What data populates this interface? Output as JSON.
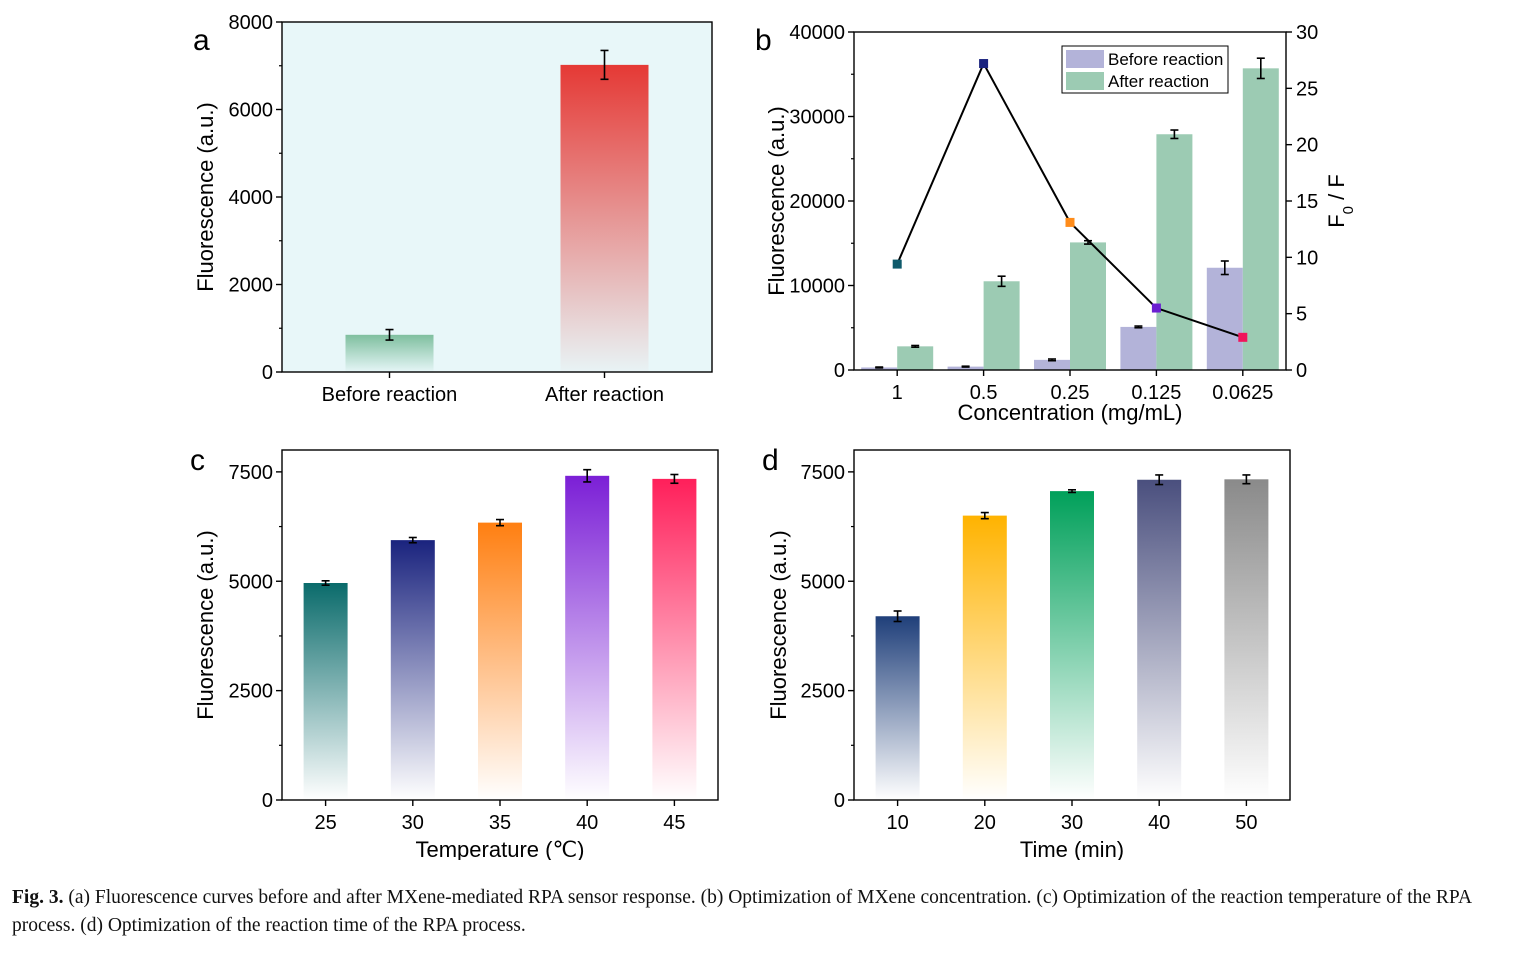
{
  "caption": {
    "label": "Fig. 3.",
    "text": "(a) Fluorescence curves before and after MXene-mediated RPA sensor response. (b) Optimization of MXene concentration. (c) Optimization of the reaction temperature of the RPA process. (d) Optimization of the reaction time of the RPA process."
  },
  "chart_data": [
    {
      "panel": "a",
      "type": "bar",
      "ylabel": "Fluorescence (a.u.)",
      "xlabel": "",
      "categories": [
        "Before reaction",
        "After reaction"
      ],
      "values": [
        850,
        7020
      ],
      "errors": [
        120,
        330
      ],
      "ylim": [
        0,
        8000
      ],
      "yticks": [
        0,
        2000,
        4000,
        6000,
        8000
      ],
      "colors": [
        "#7fbf9f",
        "#e53935"
      ],
      "background": "#e8f7f9"
    },
    {
      "panel": "b",
      "type": "bar",
      "xlabel": "Concentration  (mg/mL)",
      "ylabel": "Fluorescence (a.u.)",
      "y2label_main": "F",
      "y2label_sub": "0",
      "y2label_tail": " / F",
      "categories": [
        "1",
        "0.5",
        "0.25",
        "0.125",
        "0.0625"
      ],
      "series": [
        {
          "name": "Before reaction",
          "values": [
            300,
            400,
            1200,
            5100,
            12100
          ],
          "errors": [
            50,
            50,
            100,
            100,
            800
          ],
          "color": "#b3b3d9"
        },
        {
          "name": "After reaction",
          "values": [
            2800,
            10500,
            15100,
            27900,
            35700
          ],
          "errors": [
            100,
            600,
            200,
            500,
            1200
          ],
          "color": "#9ccbb3"
        }
      ],
      "ratio_line": {
        "values": [
          9.4,
          27.2,
          13.1,
          5.5,
          2.9
        ],
        "colors": [
          "#0f5a6b",
          "#1a237e",
          "#ff8c1a",
          "#6a1fd1",
          "#f0145a"
        ]
      },
      "ylim": [
        0,
        40000
      ],
      "yticks": [
        0,
        10000,
        20000,
        30000,
        40000
      ],
      "y2lim": [
        0,
        30
      ],
      "y2ticks": [
        0,
        5,
        10,
        15,
        20,
        25,
        30
      ],
      "legend_position": "top-right"
    },
    {
      "panel": "c",
      "type": "bar",
      "xlabel": "Temperature (℃)",
      "ylabel": "Fluorescence (a.u.)",
      "categories": [
        "25",
        "30",
        "35",
        "40",
        "45"
      ],
      "values": [
        4960,
        5940,
        6340,
        7410,
        7340
      ],
      "errors": [
        50,
        60,
        70,
        140,
        100
      ],
      "colors": [
        "#0a6b6b",
        "#1a237e",
        "#ff7f11",
        "#7b1fd6",
        "#ff1f5a"
      ],
      "ylim": [
        0,
        8000
      ],
      "yticks": [
        0,
        2500,
        5000,
        7500
      ]
    },
    {
      "panel": "d",
      "type": "bar",
      "xlabel": "Time (min)",
      "ylabel": "Fluorescence (a.u.)",
      "categories": [
        "10",
        "20",
        "30",
        "40",
        "50"
      ],
      "values": [
        4200,
        6500,
        7060,
        7320,
        7330
      ],
      "errors": [
        120,
        70,
        30,
        110,
        100
      ],
      "colors": [
        "#1f3f7a",
        "#ffb300",
        "#00a05a",
        "#4a4f7e",
        "#8a8a8a"
      ],
      "ylim": [
        0,
        8000
      ],
      "yticks": [
        0,
        2500,
        5000,
        7500
      ]
    }
  ]
}
